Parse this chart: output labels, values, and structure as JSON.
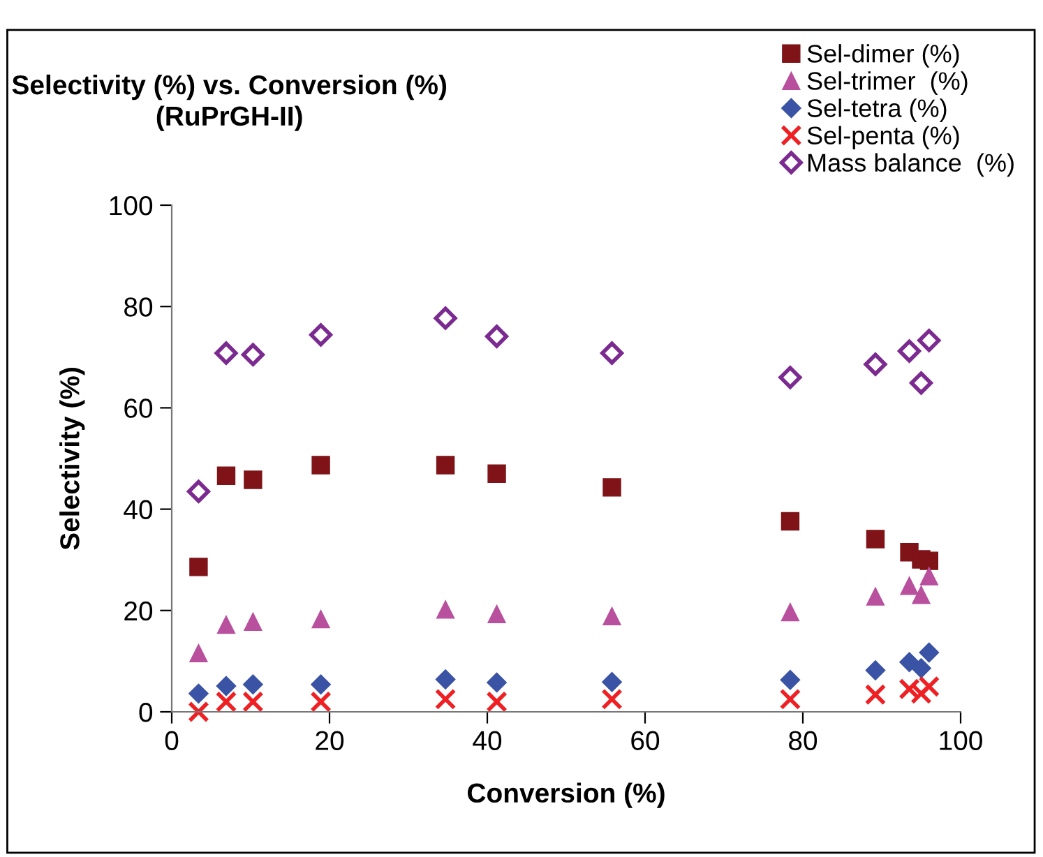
{
  "chart_data": {
    "type": "scatter",
    "title": "Selectivity (%) vs. Conversion (%)\n(RuPrGH-II)",
    "xlabel": "Conversion (%)",
    "ylabel": "Selectivity (%)",
    "x": [
      3.4,
      6.9,
      10.3,
      18.9,
      34.7,
      41.2,
      55.8,
      78.4,
      89.2,
      93.5,
      95.0,
      96.0
    ],
    "series": [
      {
        "name": "Sel-dimer (%)",
        "color": "#7f1317",
        "marker": "square",
        "values": [
          28.6,
          46.6,
          45.8,
          48.7,
          48.7,
          47.0,
          44.3,
          37.6,
          34.1,
          31.5,
          30.1,
          29.8
        ]
      },
      {
        "name": "Sel-trimer  (%)",
        "color": "#b8509e",
        "marker": "triangle",
        "values": [
          11.6,
          17.2,
          17.8,
          18.3,
          20.2,
          19.3,
          18.9,
          19.7,
          22.8,
          24.9,
          23.1,
          26.8
        ]
      },
      {
        "name": "Sel-tetra (%)",
        "color": "#3a53a4",
        "marker": "diamond",
        "values": [
          3.6,
          5.1,
          5.4,
          5.4,
          6.4,
          5.8,
          5.9,
          6.3,
          8.2,
          9.8,
          8.6,
          11.7
        ]
      },
      {
        "name": "Sel-penta (%)",
        "color": "#ee2024",
        "marker": "cross",
        "values": [
          0.0,
          2.0,
          2.0,
          2.0,
          2.5,
          2.0,
          2.5,
          2.5,
          3.4,
          4.5,
          3.6,
          5.0
        ]
      },
      {
        "name": "Mass balance  (%)",
        "color": "#7b2a90",
        "marker": "diamond",
        "values": [
          43.5,
          70.8,
          70.5,
          74.4,
          77.7,
          74.1,
          70.8,
          66.0,
          68.6,
          71.2,
          64.9,
          73.3
        ]
      }
    ],
    "xlim": [
      0,
      100
    ],
    "xticks": [
      0,
      20,
      40,
      60,
      80,
      100
    ],
    "ylim": [
      0,
      100
    ],
    "yticks": [
      0,
      20,
      40,
      60,
      80,
      100
    ],
    "grid": false,
    "legend": "top right"
  }
}
